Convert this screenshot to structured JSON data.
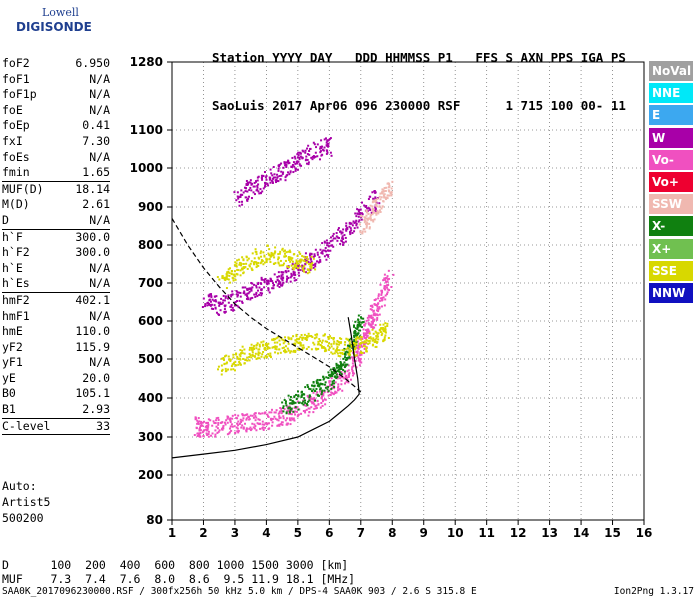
{
  "logo": {
    "line1": "Lowell",
    "line2": "DIGISONDE"
  },
  "header": {
    "line1": "Station YYYY DAY   DDD HHMMSS P1   FFS S AXN PPS IGA PS",
    "line2": "SaoLuis 2017 Apr06 096 230000 RSF      1 715 100 00- 11"
  },
  "params_group1": [
    {
      "k": "foF2",
      "v": "6.950"
    },
    {
      "k": "foF1",
      "v": "N/A"
    },
    {
      "k": "foF1p",
      "v": "N/A"
    },
    {
      "k": "foE",
      "v": "N/A"
    },
    {
      "k": "foEp",
      "v": "0.41"
    },
    {
      "k": "fxI",
      "v": "7.30"
    },
    {
      "k": "foEs",
      "v": "N/A"
    },
    {
      "k": "fmin",
      "v": "1.65"
    }
  ],
  "params_group2": [
    {
      "k": "MUF(D)",
      "v": "18.14"
    },
    {
      "k": "M(D)",
      "v": "2.61"
    },
    {
      "k": "D",
      "v": "N/A"
    }
  ],
  "params_group3": [
    {
      "k": "h`F",
      "v": "300.0"
    },
    {
      "k": "h`F2",
      "v": "300.0"
    },
    {
      "k": "h`E",
      "v": "N/A"
    },
    {
      "k": "h`Es",
      "v": "N/A"
    }
  ],
  "params_group4": [
    {
      "k": "hmF2",
      "v": "402.1"
    },
    {
      "k": "hmF1",
      "v": "N/A"
    },
    {
      "k": "hmE",
      "v": "110.0"
    },
    {
      "k": "yF2",
      "v": "115.9"
    },
    {
      "k": "yF1",
      "v": "N/A"
    },
    {
      "k": "yE",
      "v": "20.0"
    },
    {
      "k": "B0",
      "v": "105.1"
    },
    {
      "k": "B1",
      "v": "2.93"
    }
  ],
  "params_group5": [
    {
      "k": "C-level",
      "v": "33"
    }
  ],
  "auto": {
    "line1": "Auto:",
    "line2": "Artist5",
    "line3": "500200"
  },
  "muf_table": {
    "d_row": "D      100  200  400  600  800 1000 1500 3000 [km]",
    "muf_row": "MUF    7.3  7.4  7.6  8.0  8.6  9.5 11.9 18.1 [MHz]"
  },
  "footer": {
    "left": "SAA0K_2017096230000.RSF / 300fx256h 50 kHz 5.0 km / DPS-4 SAA0K 903 / 2.6 S 315.8 E",
    "right": "Ion2Png 1.3.17"
  },
  "legend": [
    {
      "label": "NoVal",
      "color": "#a0a0a0"
    },
    {
      "label": "NNE",
      "color": "#00e8f8"
    },
    {
      "label": "E",
      "color": "#3ca8f0"
    },
    {
      "label": "W",
      "color": "#a800a8"
    },
    {
      "label": "Vo-",
      "color": "#f050c0"
    },
    {
      "label": "Vo+",
      "color": "#ee0030"
    },
    {
      "label": "SSW",
      "color": "#f0b8b0"
    },
    {
      "label": "X-",
      "color": "#108010"
    },
    {
      "label": "X+",
      "color": "#70c050"
    },
    {
      "label": "SSE",
      "color": "#d8d800"
    },
    {
      "label": "NNW",
      "color": "#1010c0"
    }
  ],
  "chart_data": {
    "type": "scatter",
    "x_ticks": [
      "1",
      "2",
      "3",
      "4",
      "5",
      "6",
      "7",
      "8",
      "9",
      "10",
      "11",
      "12",
      "13",
      "14",
      "15",
      "16"
    ],
    "y_ticks": [
      "80",
      "200",
      "300",
      "400",
      "500",
      "600",
      "700",
      "800",
      "900",
      "1000",
      "1100",
      "1280"
    ],
    "xlim": [
      1,
      16
    ],
    "ylim": [
      80,
      1280
    ],
    "grid": true,
    "legend_position": "right",
    "y_scale": "nonlinear (piecewise, 80 to 1280 km)",
    "series": [
      {
        "color": "#a800a8",
        "points": [
          [
            2.0,
            660
          ],
          [
            2.5,
            640
          ],
          [
            3.0,
            660
          ],
          [
            3.5,
            680
          ],
          [
            4.0,
            700
          ],
          [
            4.5,
            720
          ],
          [
            5.0,
            740
          ],
          [
            5.5,
            770
          ],
          [
            6.0,
            800
          ],
          [
            6.5,
            840
          ],
          [
            7.0,
            880
          ],
          [
            7.5,
            930
          ]
        ]
      },
      {
        "color": "#f0b8b0",
        "points": [
          [
            7.0,
            850
          ],
          [
            7.3,
            880
          ],
          [
            7.6,
            920
          ],
          [
            7.9,
            950
          ]
        ]
      },
      {
        "color": "#a800a8",
        "points": [
          [
            3.0,
            920
          ],
          [
            3.5,
            950
          ],
          [
            4.0,
            975
          ],
          [
            4.5,
            995
          ],
          [
            5.0,
            1020
          ],
          [
            5.5,
            1045
          ],
          [
            6.0,
            1060
          ]
        ]
      },
      {
        "color": "#f050c0",
        "points": [
          [
            1.7,
            330
          ],
          [
            2.0,
            325
          ],
          [
            2.5,
            330
          ],
          [
            3.0,
            335
          ],
          [
            3.5,
            340
          ],
          [
            4.0,
            345
          ],
          [
            4.5,
            355
          ],
          [
            5.0,
            370
          ],
          [
            5.5,
            390
          ],
          [
            6.0,
            420
          ],
          [
            6.5,
            460
          ],
          [
            6.8,
            500
          ],
          [
            7.0,
            540
          ],
          [
            7.2,
            580
          ],
          [
            7.4,
            620
          ],
          [
            7.6,
            660
          ],
          [
            7.9,
            720
          ]
        ]
      },
      {
        "color": "#108010",
        "points": [
          [
            4.5,
            380
          ],
          [
            5.0,
            395
          ],
          [
            5.5,
            420
          ],
          [
            6.0,
            450
          ],
          [
            6.3,
            480
          ],
          [
            6.6,
            520
          ],
          [
            6.8,
            560
          ],
          [
            7.0,
            610
          ]
        ]
      },
      {
        "color": "#d8d800",
        "points": [
          [
            2.5,
            480
          ],
          [
            3.0,
            500
          ],
          [
            3.5,
            520
          ],
          [
            4.0,
            530
          ],
          [
            4.5,
            540
          ],
          [
            5.0,
            545
          ],
          [
            5.5,
            550
          ],
          [
            6.0,
            540
          ],
          [
            6.5,
            530
          ],
          [
            7.0,
            540
          ],
          [
            7.5,
            560
          ],
          [
            7.8,
            580
          ]
        ]
      },
      {
        "color": "#d8d800",
        "points": [
          [
            2.5,
            700
          ],
          [
            3.0,
            740
          ],
          [
            3.5,
            760
          ],
          [
            4.0,
            780
          ],
          [
            4.5,
            770
          ],
          [
            5.0,
            760
          ],
          [
            5.5,
            740
          ]
        ]
      }
    ],
    "curves": [
      {
        "style": "solid",
        "points": [
          [
            1.0,
            245
          ],
          [
            2.0,
            255
          ],
          [
            3.0,
            265
          ],
          [
            4.0,
            280
          ],
          [
            5.0,
            300
          ],
          [
            5.5,
            320
          ],
          [
            6.0,
            340
          ],
          [
            6.3,
            360
          ],
          [
            6.6,
            380
          ],
          [
            6.8,
            395
          ],
          [
            6.95,
            410
          ],
          [
            6.9,
            450
          ],
          [
            6.8,
            500
          ],
          [
            6.7,
            560
          ],
          [
            6.6,
            610
          ]
        ]
      },
      {
        "style": "dashed",
        "points": [
          [
            1.0,
            870
          ],
          [
            1.5,
            800
          ],
          [
            2.0,
            740
          ],
          [
            2.5,
            690
          ],
          [
            3.0,
            645
          ],
          [
            3.5,
            610
          ],
          [
            4.0,
            580
          ],
          [
            4.5,
            555
          ],
          [
            5.0,
            530
          ],
          [
            5.5,
            505
          ],
          [
            6.0,
            480
          ],
          [
            6.5,
            450
          ],
          [
            6.8,
            430
          ],
          [
            7.0,
            415
          ]
        ]
      }
    ]
  }
}
